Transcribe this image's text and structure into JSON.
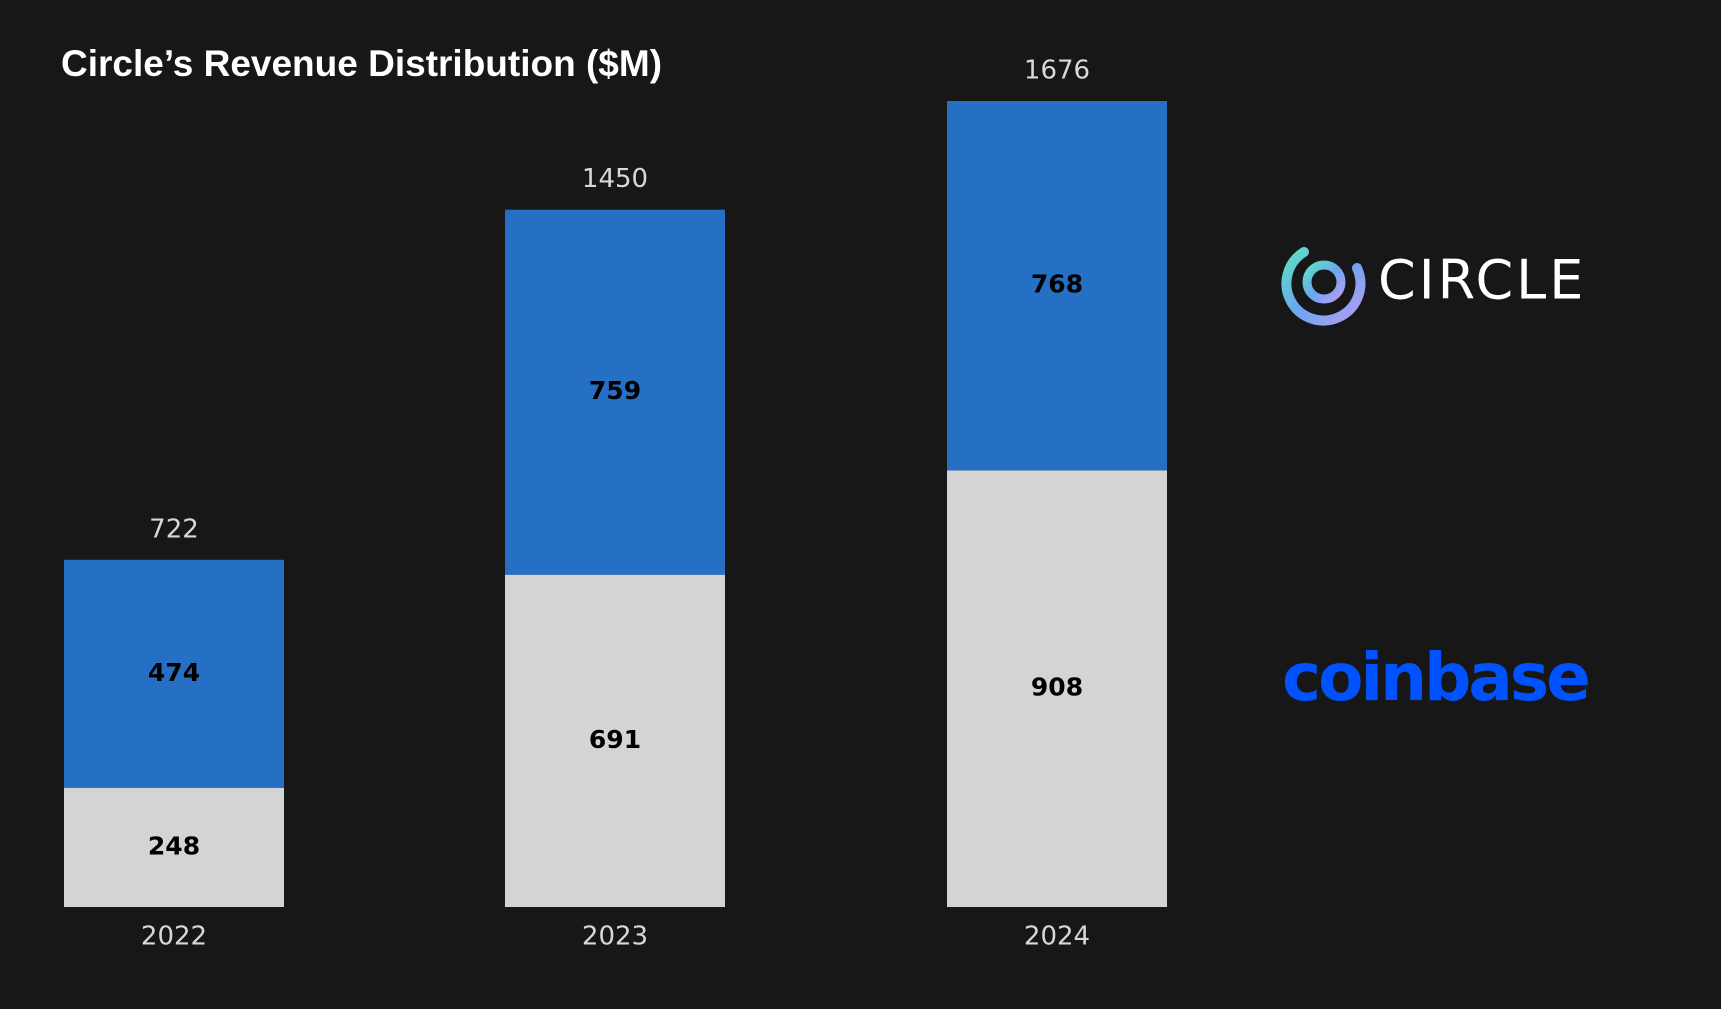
{
  "chart_data": {
    "type": "stacked_bar",
    "title": "Circle’s Revenue Distribution ($M)",
    "categories": [
      "2022",
      "2023",
      "2024"
    ],
    "series": [
      {
        "name": "coinbase",
        "color": "#d4d4d4",
        "values": [
          248,
          691,
          908
        ]
      },
      {
        "name": "CIRCLE",
        "color": "#2570c4",
        "values": [
          474,
          759,
          768
        ]
      }
    ],
    "totals": [
      722,
      1450,
      1676
    ]
  }
}
